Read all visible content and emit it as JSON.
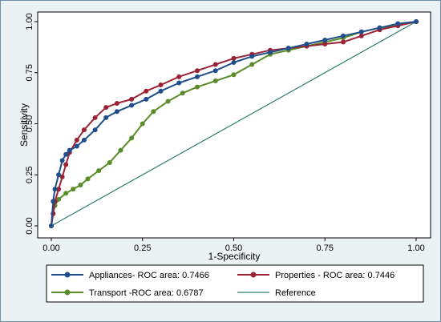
{
  "chart_data": {
    "type": "line",
    "xlabel": "1-Specificity",
    "ylabel": "Sensitivity",
    "xlim": [
      0,
      1
    ],
    "ylim": [
      0,
      1
    ],
    "x_ticks": [
      "0.00",
      "0.25",
      "0.50",
      "0.75",
      "1.00"
    ],
    "y_ticks": [
      "0.00",
      "0.25",
      "0.50",
      "0.75",
      "1.00"
    ],
    "grid": false,
    "legend_position": "bottom",
    "series": [
      {
        "name": "Appliances- ROC area: 0.7466",
        "color": "#1f4e8c",
        "marker": "circle",
        "x": [
          0,
          0.005,
          0.01,
          0.02,
          0.03,
          0.04,
          0.05,
          0.07,
          0.09,
          0.12,
          0.15,
          0.18,
          0.22,
          0.26,
          0.3,
          0.35,
          0.4,
          0.45,
          0.5,
          0.55,
          0.6,
          0.65,
          0.7,
          0.75,
          0.8,
          0.85,
          0.9,
          0.95,
          1.0
        ],
        "y": [
          0,
          0.12,
          0.18,
          0.25,
          0.32,
          0.35,
          0.37,
          0.39,
          0.42,
          0.47,
          0.53,
          0.56,
          0.59,
          0.62,
          0.66,
          0.7,
          0.73,
          0.76,
          0.8,
          0.83,
          0.85,
          0.87,
          0.89,
          0.91,
          0.93,
          0.95,
          0.97,
          0.99,
          1.0
        ]
      },
      {
        "name": "Properties - ROC area: 0.7446",
        "color": "#9b2335",
        "marker": "circle",
        "x": [
          0,
          0.005,
          0.01,
          0.02,
          0.03,
          0.04,
          0.05,
          0.07,
          0.09,
          0.12,
          0.15,
          0.18,
          0.22,
          0.26,
          0.3,
          0.35,
          0.4,
          0.45,
          0.5,
          0.55,
          0.6,
          0.65,
          0.7,
          0.75,
          0.8,
          0.85,
          0.9,
          0.95,
          1.0
        ],
        "y": [
          0,
          0.06,
          0.12,
          0.18,
          0.24,
          0.3,
          0.36,
          0.42,
          0.47,
          0.53,
          0.58,
          0.6,
          0.62,
          0.66,
          0.69,
          0.73,
          0.76,
          0.79,
          0.82,
          0.84,
          0.86,
          0.87,
          0.88,
          0.89,
          0.9,
          0.93,
          0.96,
          0.98,
          1.0
        ]
      },
      {
        "name": "Transport -ROC area: 0.6787",
        "color": "#5b8c2a",
        "marker": "circle",
        "x": [
          0,
          0.005,
          0.01,
          0.02,
          0.04,
          0.06,
          0.08,
          0.1,
          0.13,
          0.16,
          0.19,
          0.22,
          0.25,
          0.28,
          0.32,
          0.36,
          0.4,
          0.45,
          0.5,
          0.55,
          0.6,
          0.65,
          0.7,
          0.75,
          0.8,
          0.85,
          0.9,
          0.95,
          1.0
        ],
        "y": [
          0,
          0.06,
          0.1,
          0.13,
          0.16,
          0.18,
          0.2,
          0.23,
          0.27,
          0.31,
          0.37,
          0.43,
          0.5,
          0.56,
          0.61,
          0.65,
          0.68,
          0.71,
          0.74,
          0.79,
          0.84,
          0.86,
          0.88,
          0.9,
          0.92,
          0.95,
          0.97,
          0.98,
          1.0
        ]
      },
      {
        "name": "Reference",
        "color": "#2e7d6e",
        "marker": "none",
        "x": [
          0,
          1
        ],
        "y": [
          0,
          1
        ]
      }
    ]
  }
}
